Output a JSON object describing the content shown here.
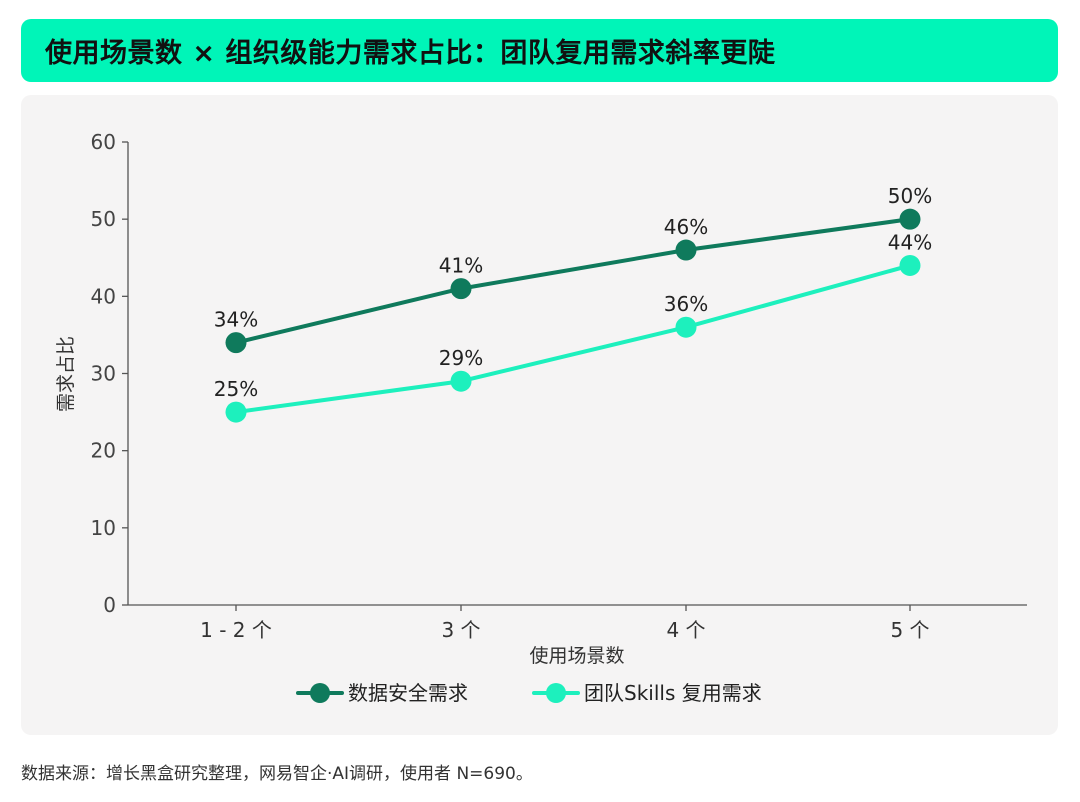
{
  "title": "使用场景数 × 组织级能力需求占比：团队复用需求斜率更陡",
  "source": "数据来源：增长黑盒研究整理，网易智企·AI调研，使用者 N=690。",
  "chart_data": {
    "type": "line",
    "categories": [
      "1 - 2 个",
      "3 个",
      "4 个",
      "5 个"
    ],
    "xlabel": "使用场景数",
    "ylabel": "需求占比",
    "ylim": [
      0,
      60
    ],
    "yticks": [
      0,
      10,
      20,
      30,
      40,
      50,
      60
    ],
    "grid": false,
    "legend_position": "bottom",
    "series": [
      {
        "name": "数据安全需求",
        "values": [
          34,
          41,
          46,
          50
        ],
        "labels": [
          "34%",
          "41%",
          "46%",
          "50%"
        ],
        "color": "#0f7a5c"
      },
      {
        "name": "团队Skills 复用需求",
        "values": [
          25,
          29,
          36,
          44
        ],
        "labels": [
          "25%",
          "29%",
          "36%",
          "44%"
        ],
        "color": "#1df0bd"
      }
    ]
  }
}
